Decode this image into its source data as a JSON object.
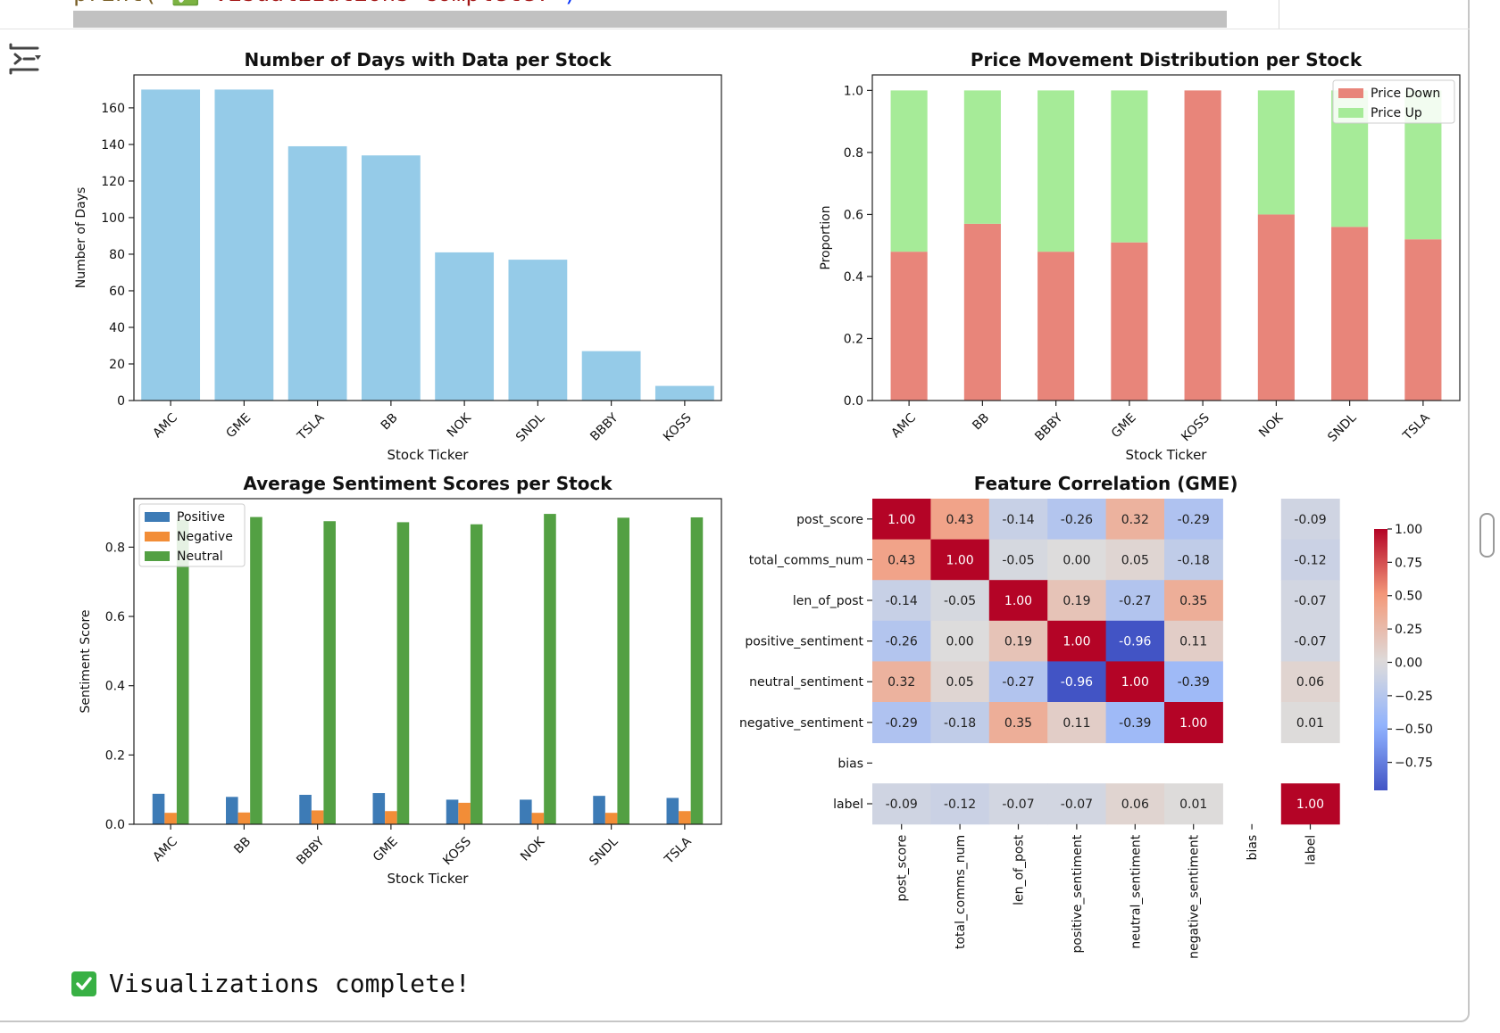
{
  "notebook": {
    "code_line_prefix": "print(",
    "code_line_string": "\"✅ Visualizations complete!\"",
    "code_line_suffix": ")",
    "status_text": "Visualizations complete!",
    "output_icon": "output-toggle-icon",
    "status_icon": "check-mark-icon"
  },
  "colors": {
    "bar_blue": "#95cbe8",
    "price_down": "#e8857a",
    "price_up": "#a6eb98",
    "positive": "#3d7bb6",
    "negative": "#f28d37",
    "neutral": "#53a043"
  },
  "chart_data": [
    {
      "id": "days",
      "type": "bar",
      "title": "Number of Days with Data per Stock",
      "xlabel": "Stock Ticker",
      "ylabel": "Number of Days",
      "categories": [
        "AMC",
        "GME",
        "TSLA",
        "BB",
        "NOK",
        "SNDL",
        "BBBY",
        "KOSS"
      ],
      "values": [
        170,
        170,
        139,
        134,
        81,
        77,
        27,
        8
      ],
      "ylim": [
        0,
        178
      ],
      "yticks": [
        0,
        20,
        40,
        60,
        80,
        100,
        120,
        140,
        160
      ]
    },
    {
      "id": "price",
      "type": "bar",
      "stacked": true,
      "title": "Price Movement Distribution per Stock",
      "xlabel": "Stock Ticker",
      "ylabel": "Proportion",
      "categories": [
        "AMC",
        "BB",
        "BBBY",
        "GME",
        "KOSS",
        "NOK",
        "SNDL",
        "TSLA"
      ],
      "series": [
        {
          "name": "Price Down",
          "values": [
            0.48,
            0.57,
            0.48,
            0.51,
            1.0,
            0.6,
            0.56,
            0.52
          ]
        },
        {
          "name": "Price Up",
          "values": [
            0.52,
            0.43,
            0.52,
            0.49,
            0.0,
            0.4,
            0.44,
            0.48
          ]
        }
      ],
      "ylim": [
        0,
        1.05
      ],
      "yticks": [
        "0.0",
        "0.2",
        "0.4",
        "0.6",
        "0.8",
        "1.0"
      ],
      "legend": "top-right"
    },
    {
      "id": "sentiment",
      "type": "bar",
      "title": "Average Sentiment Scores per Stock",
      "xlabel": "Stock Ticker",
      "ylabel": "Sentiment Score",
      "categories": [
        "AMC",
        "BB",
        "BBBY",
        "GME",
        "KOSS",
        "NOK",
        "SNDL",
        "TSLA"
      ],
      "series": [
        {
          "name": "Positive",
          "values": [
            0.088,
            0.079,
            0.085,
            0.09,
            0.071,
            0.071,
            0.082,
            0.076
          ]
        },
        {
          "name": "Negative",
          "values": [
            0.033,
            0.034,
            0.04,
            0.038,
            0.062,
            0.033,
            0.033,
            0.038
          ]
        },
        {
          "name": "Neutral",
          "values": [
            0.879,
            0.887,
            0.875,
            0.872,
            0.866,
            0.896,
            0.885,
            0.886
          ]
        }
      ],
      "ylim": [
        0,
        0.94
      ],
      "yticks": [
        "0.0",
        "0.2",
        "0.4",
        "0.6",
        "0.8"
      ],
      "legend": "top-left"
    },
    {
      "id": "corr",
      "type": "heatmap",
      "title": "Feature Correlation (GME)",
      "labels": [
        "post_score",
        "total_comms_num",
        "len_of_post",
        "positive_sentiment",
        "neutral_sentiment",
        "negative_sentiment",
        "bias",
        "label"
      ],
      "matrix": [
        [
          1.0,
          0.43,
          -0.14,
          -0.26,
          0.32,
          -0.29,
          null,
          -0.09
        ],
        [
          0.43,
          1.0,
          -0.05,
          0.0,
          0.05,
          -0.18,
          null,
          -0.12
        ],
        [
          -0.14,
          -0.05,
          1.0,
          0.19,
          -0.27,
          0.35,
          null,
          -0.07
        ],
        [
          -0.26,
          0.0,
          0.19,
          1.0,
          -0.96,
          0.11,
          null,
          -0.07
        ],
        [
          0.32,
          0.05,
          -0.27,
          -0.96,
          1.0,
          -0.39,
          null,
          0.06
        ],
        [
          -0.29,
          -0.18,
          0.35,
          0.11,
          -0.39,
          1.0,
          null,
          0.01
        ],
        [
          null,
          null,
          null,
          null,
          null,
          null,
          null,
          null
        ],
        [
          -0.09,
          -0.12,
          -0.07,
          -0.07,
          0.06,
          0.01,
          null,
          1.0
        ]
      ],
      "colorbar_ticks": [
        "1.00",
        "0.75",
        "0.50",
        "0.25",
        "0.00",
        "−0.25",
        "−0.50",
        "−0.75"
      ],
      "colorbar_values": [
        1.0,
        0.75,
        0.5,
        0.25,
        0.0,
        -0.25,
        -0.5,
        -0.75
      ],
      "colormap": "coolwarm"
    }
  ]
}
